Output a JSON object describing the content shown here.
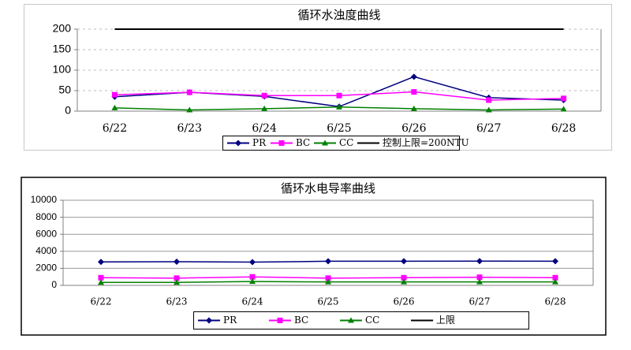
{
  "chart_data": [
    {
      "type": "line",
      "title": "循环水浊度曲线",
      "categories": [
        "6/22",
        "6/23",
        "6/24",
        "6/25",
        "6/26",
        "6/27",
        "6/28"
      ],
      "ylim": [
        0,
        200
      ],
      "yticks": [
        0,
        50,
        100,
        150,
        200
      ],
      "grid": true,
      "series": [
        {
          "name": "PR",
          "color": "#000080",
          "marker": "diamond",
          "values": [
            35,
            46,
            36,
            11,
            84,
            33,
            27
          ]
        },
        {
          "name": "BC",
          "color": "#ff00ff",
          "marker": "square",
          "values": [
            40,
            46,
            38,
            38,
            47,
            27,
            31
          ]
        },
        {
          "name": "CC",
          "color": "#008000",
          "marker": "triangle",
          "values": [
            8,
            3,
            6,
            10,
            6,
            3,
            5
          ]
        },
        {
          "name": "控制上限=200NTU",
          "color": "#000000",
          "marker": "none",
          "values": [
            200,
            200,
            200,
            200,
            200,
            200,
            200
          ]
        }
      ]
    },
    {
      "type": "line",
      "title": "循环水电导率曲线",
      "categories": [
        "6/22",
        "6/23",
        "6/24",
        "6/25",
        "6/26",
        "6/27",
        "6/28"
      ],
      "ylim": [
        0,
        10000
      ],
      "yticks": [
        0,
        2000,
        4000,
        6000,
        8000,
        10000
      ],
      "grid": true,
      "series": [
        {
          "name": "PR",
          "color": "#000080",
          "marker": "diamond",
          "values": [
            2750,
            2780,
            2730,
            2830,
            2840,
            2850,
            2840
          ]
        },
        {
          "name": "BC",
          "color": "#ff00ff",
          "marker": "square",
          "values": [
            900,
            850,
            1000,
            850,
            900,
            950,
            900
          ]
        },
        {
          "name": "CC",
          "color": "#008000",
          "marker": "triangle",
          "values": [
            350,
            350,
            450,
            400,
            400,
            400,
            400
          ]
        },
        {
          "name": "上限",
          "color": "#000000",
          "marker": "none",
          "values": [
            null,
            null,
            null,
            null,
            null,
            null,
            null
          ]
        }
      ]
    }
  ]
}
